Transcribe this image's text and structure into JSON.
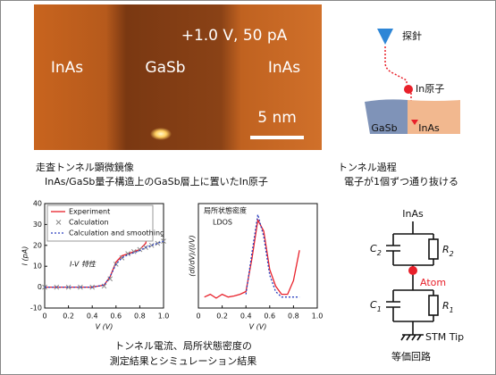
{
  "stm_image": {
    "bias": "+1.0 V, 50 pA",
    "left_material": "InAs",
    "center_material": "GaSb",
    "right_material": "InAs",
    "scale": "5 nm"
  },
  "stm_caption": {
    "title": "走査トンネル顕微鏡像",
    "subtitle": "InAs/GaSb量子構造上のGaSb層上に置いたIn原子"
  },
  "process": {
    "tip": "探針",
    "atom": "In原子",
    "left_layer": "GaSb",
    "right_layer": "InAs",
    "title": "トンネル過程",
    "subtitle": "電子が1個ずつ通り抜ける"
  },
  "circuit": {
    "top": "InAs",
    "c2": [
      "C",
      "2"
    ],
    "r2": [
      "R",
      "2"
    ],
    "atom": "Atom",
    "c1": [
      "C",
      "1"
    ],
    "r1": [
      "R",
      "1"
    ],
    "bottom": "STM Tip",
    "title": "等価回路"
  },
  "charts_caption": [
    "トンネル電流、局所状態密度の",
    "測定結果とシミュレーション結果"
  ],
  "chart_data": [
    {
      "type": "line",
      "y_label": "I (pA)",
      "x_label": "V (V)",
      "annotation": "I-V 特性",
      "legend": "top-left",
      "x": [
        0,
        0.1,
        0.2,
        0.3,
        0.4,
        0.5,
        0.55,
        0.6,
        0.65,
        0.7,
        0.75,
        0.8,
        0.85,
        0.9,
        0.95,
        1.0
      ],
      "series": [
        {
          "name": "Experiment",
          "color": "#e8202a",
          "style": "solid",
          "values": [
            0,
            0,
            0,
            0,
            0,
            1,
            5,
            12,
            15,
            16,
            17,
            18,
            21,
            38,
            null,
            null
          ]
        },
        {
          "name": "Calculation",
          "color": "#8a8a8a",
          "style": "x-marker",
          "values": [
            0,
            0,
            0,
            0,
            0,
            0.5,
            4,
            11,
            14,
            16,
            17,
            18,
            19,
            20,
            21,
            22
          ]
        },
        {
          "name": "Calculation and smoothing",
          "color": "#2a3fbf",
          "style": "dotted",
          "values": [
            0,
            0,
            0,
            0,
            0,
            1,
            5,
            11,
            14,
            15.5,
            16.5,
            17.5,
            19,
            20,
            21,
            22
          ]
        }
      ],
      "xlim": [
        0,
        1.0
      ],
      "xticks": [
        0,
        0.2,
        0.4,
        0.6,
        0.8,
        {
          "value": 1.0,
          "label": "1.0"
        }
      ],
      "ylim": [
        -10,
        40
      ],
      "yticks": [
        -10,
        0,
        10,
        20,
        30,
        40
      ]
    },
    {
      "type": "line",
      "y_label": "(dI/dV)/(I/V)",
      "x_label": "V (V)",
      "annotation": [
        "局所状態密度",
        "LDOS"
      ],
      "x": [
        0.05,
        0.1,
        0.15,
        0.2,
        0.25,
        0.3,
        0.35,
        0.4,
        0.45,
        0.5,
        0.55,
        0.6,
        0.65,
        0.7,
        0.75,
        0.8,
        0.85
      ],
      "series": [
        {
          "name": "Experiment",
          "color": "#e8202a",
          "style": "solid",
          "values": [
            1,
            1.5,
            0.8,
            1.5,
            1,
            1.2,
            1.5,
            2,
            8,
            15,
            13,
            6,
            3,
            1.5,
            1.5,
            4,
            9.5
          ]
        },
        {
          "name": "Calculation",
          "color": "#2a3fbf",
          "style": "dotted",
          "values": [
            null,
            null,
            null,
            null,
            null,
            null,
            null,
            1.5,
            9,
            16,
            12,
            5,
            2,
            1,
            1,
            1,
            1
          ]
        }
      ],
      "xlim": [
        0,
        1.0
      ],
      "xticks": [
        0,
        0.2,
        0.4,
        0.6,
        0.8,
        {
          "value": 1.0,
          "label": "1.0"
        }
      ],
      "ylim": [
        -1,
        18
      ]
    }
  ]
}
